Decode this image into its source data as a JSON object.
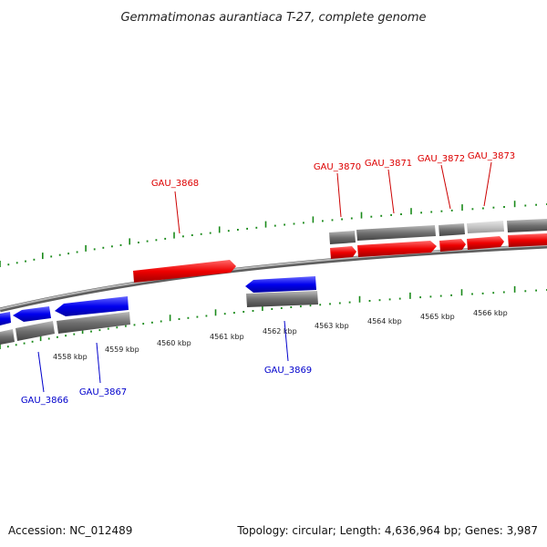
{
  "title": "Gemmatimonas aurantiaca T-27, complete genome",
  "footer": {
    "accession": "Accession: NC_012489",
    "summary": "Topology: circular; Length: 4,636,964 bp; Genes: 3,987"
  },
  "kbp_labels": [
    "4558 kbp",
    "4559 kbp",
    "4560 kbp",
    "4561 kbp",
    "4562 kbp",
    "4563 kbp",
    "4564 kbp",
    "4565 kbp",
    "4566 kbp"
  ],
  "genes_forward": [
    "GAU_3868",
    "GAU_3870",
    "GAU_3871",
    "GAU_3872",
    "GAU_3873"
  ],
  "genes_reverse": [
    "GAU_3866",
    "GAU_3867",
    "GAU_3869"
  ],
  "colors": {
    "forward": "#ff0000",
    "reverse": "#0000ff",
    "backbone": "#8c8c8c",
    "ticks": "#1a8a1a",
    "gene_block": "#6a6a6a"
  }
}
